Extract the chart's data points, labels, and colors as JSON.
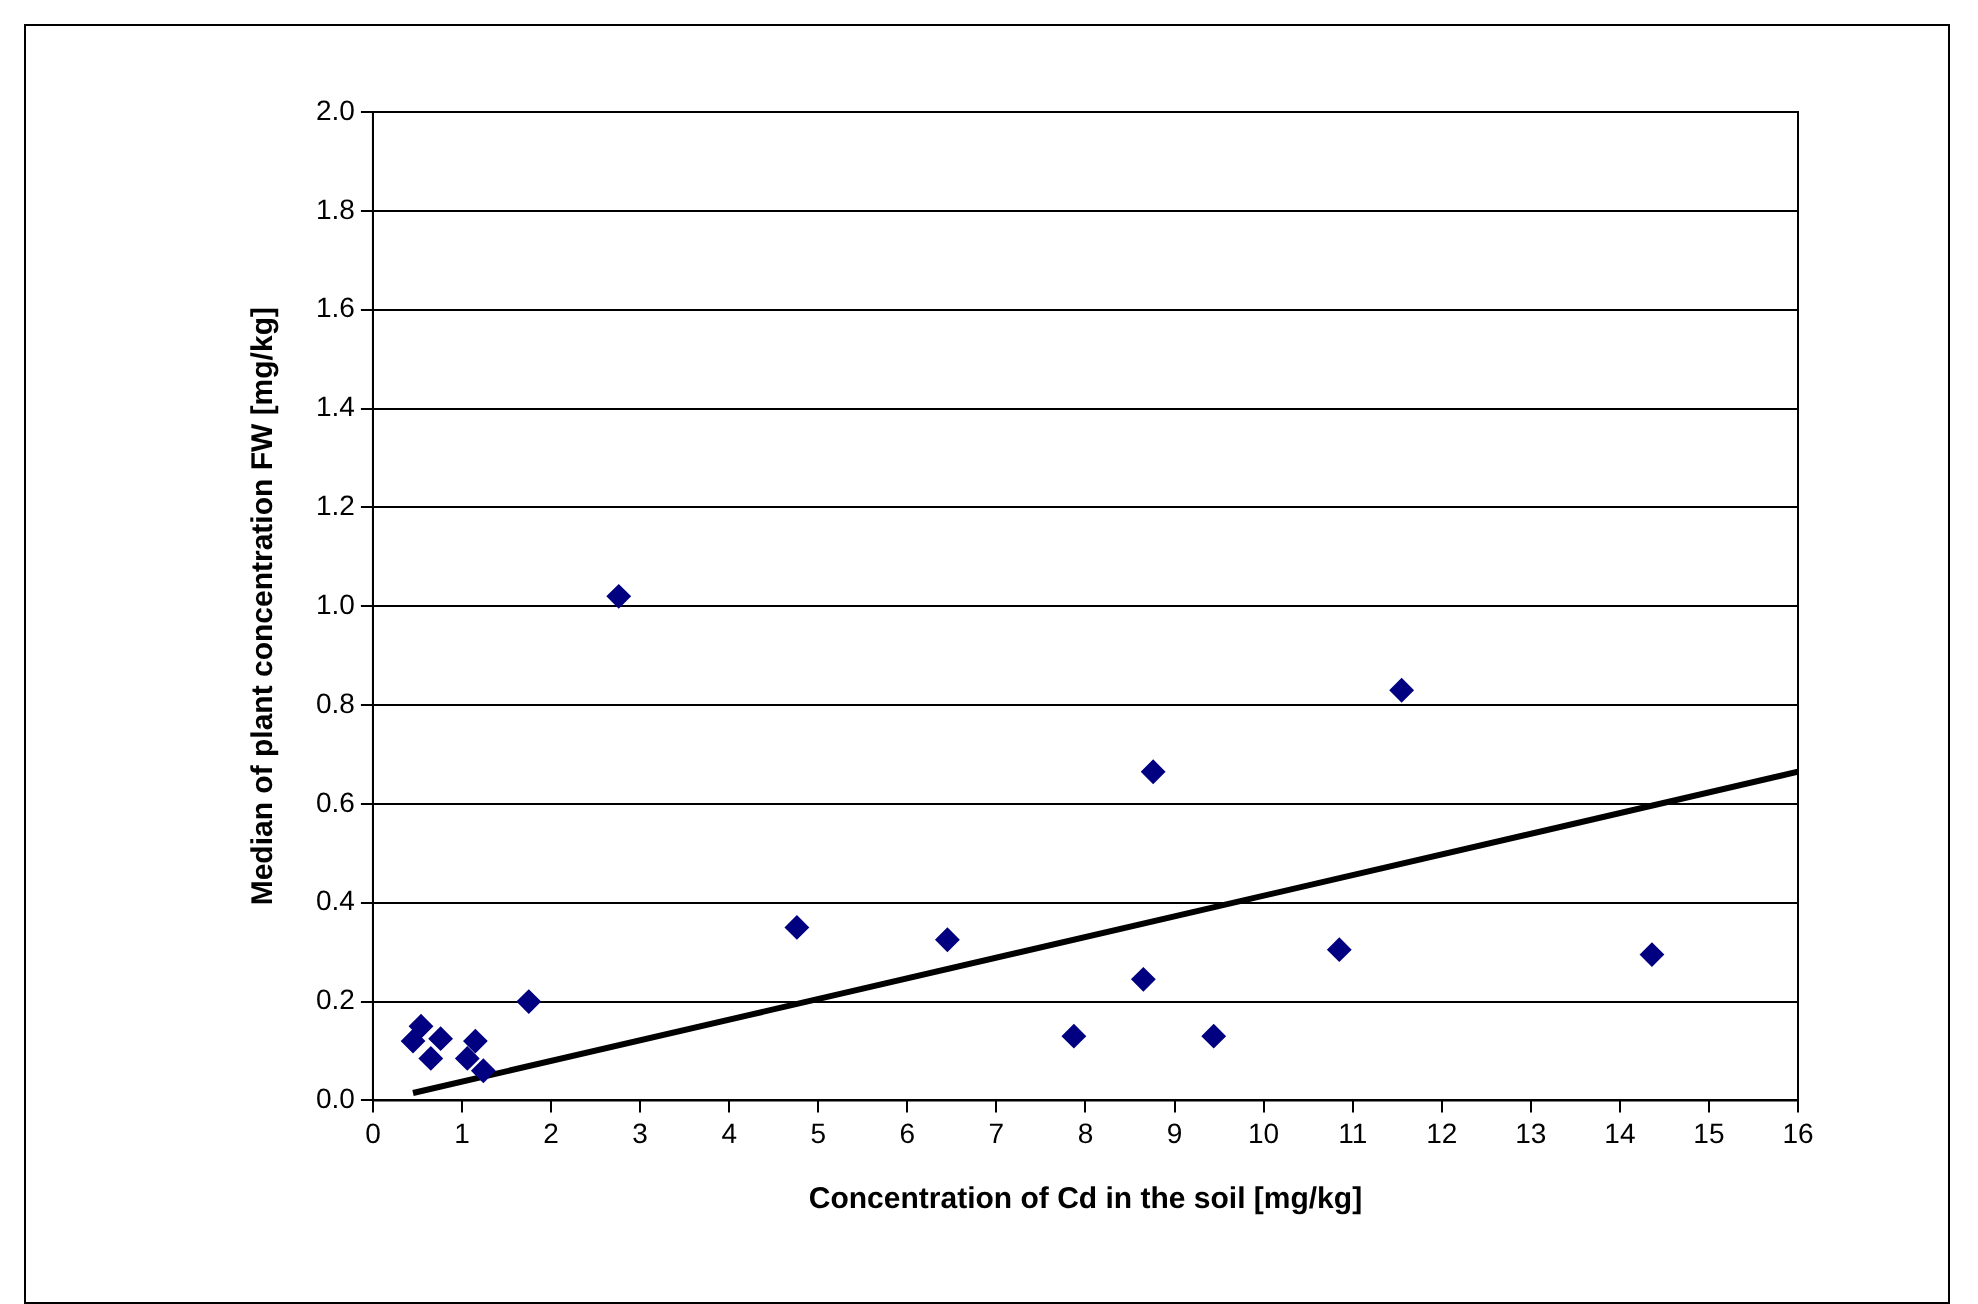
{
  "chart_data": {
    "type": "scatter",
    "xlabel": "Concentration of Cd in the soil [mg/kg]",
    "ylabel": "Median of plant concentration FW [mg/kg]",
    "xlim": [
      0,
      16
    ],
    "xticks": [
      0,
      1,
      2,
      3,
      4,
      5,
      6,
      7,
      8,
      9,
      10,
      11,
      12,
      13,
      14,
      15,
      16
    ],
    "ylim": [
      0,
      2
    ],
    "yticks": [
      {
        "value": 0,
        "label": "0.0"
      },
      {
        "value": 0.2,
        "label": "0.2"
      },
      {
        "value": 0.4,
        "label": "0.4"
      },
      {
        "value": 0.6,
        "label": "0.6"
      },
      {
        "value": 0.8,
        "label": "0.8"
      },
      {
        "value": 1,
        "label": "1.0"
      },
      {
        "value": 1.2,
        "label": "1.2"
      },
      {
        "value": 1.4,
        "label": "1.4"
      },
      {
        "value": 1.6,
        "label": "1.6"
      },
      {
        "value": 1.8,
        "label": "1.8"
      },
      {
        "value": 2,
        "label": "2.0"
      }
    ],
    "grid": "y",
    "legend": false,
    "series": [
      {
        "marker": "diamond",
        "color": "#000080",
        "x": [
          0.45,
          0.54,
          0.65,
          0.76,
          1.06,
          1.15,
          1.24,
          1.75,
          2.76,
          4.76,
          6.45,
          7.87,
          8.65,
          8.76,
          9.44,
          10.85,
          11.55,
          14.36
        ],
        "values": [
          0.12,
          0.15,
          0.085,
          0.125,
          0.085,
          0.12,
          0.06,
          0.2,
          1.02,
          0.35,
          0.325,
          0.13,
          0.245,
          0.665,
          0.13,
          0.305,
          0.83,
          0.295
        ]
      },
      {
        "type": "line",
        "marker": "none",
        "color": "#000000",
        "x": [
          0.45,
          16
        ],
        "values": [
          0.015,
          0.665
        ]
      }
    ]
  }
}
